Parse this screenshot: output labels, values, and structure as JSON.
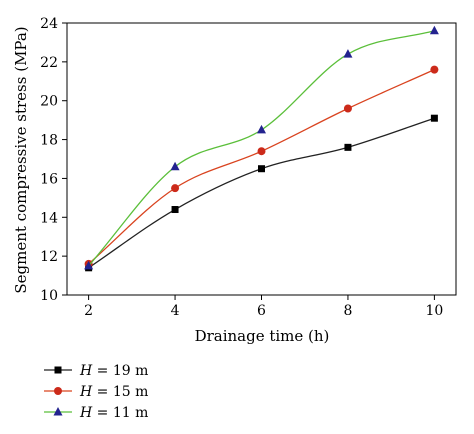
{
  "chart_data": {
    "type": "line",
    "xlabel": "Drainage time (h)",
    "ylabel": "Segment compressive stress (MPa)",
    "xlim": [
      1.5,
      10.5
    ],
    "ylim": [
      10,
      24
    ],
    "xticks": [
      2,
      4,
      6,
      8,
      10
    ],
    "yticks": [
      10,
      12,
      14,
      16,
      18,
      20,
      22,
      24
    ],
    "x": [
      2,
      4,
      6,
      8,
      10
    ],
    "legend_position": "bottom-left",
    "grid": false,
    "series": [
      {
        "name_var": "H",
        "name_rest": " = 19 m",
        "marker": "square",
        "color": "#000000",
        "line_color": "#222222",
        "values": [
          11.4,
          14.4,
          16.5,
          17.6,
          19.1
        ]
      },
      {
        "name_var": "H",
        "name_rest": " = 15 m",
        "marker": "circle",
        "color": "#cc2a1a",
        "line_color": "#d9431f",
        "values": [
          11.6,
          15.5,
          17.4,
          19.6,
          21.6
        ]
      },
      {
        "name_var": "H",
        "name_rest": " = 11 m",
        "marker": "triangle",
        "color": "#23238f",
        "line_color": "#5bbf3a",
        "values": [
          11.5,
          16.6,
          18.5,
          22.4,
          23.6
        ]
      }
    ]
  }
}
